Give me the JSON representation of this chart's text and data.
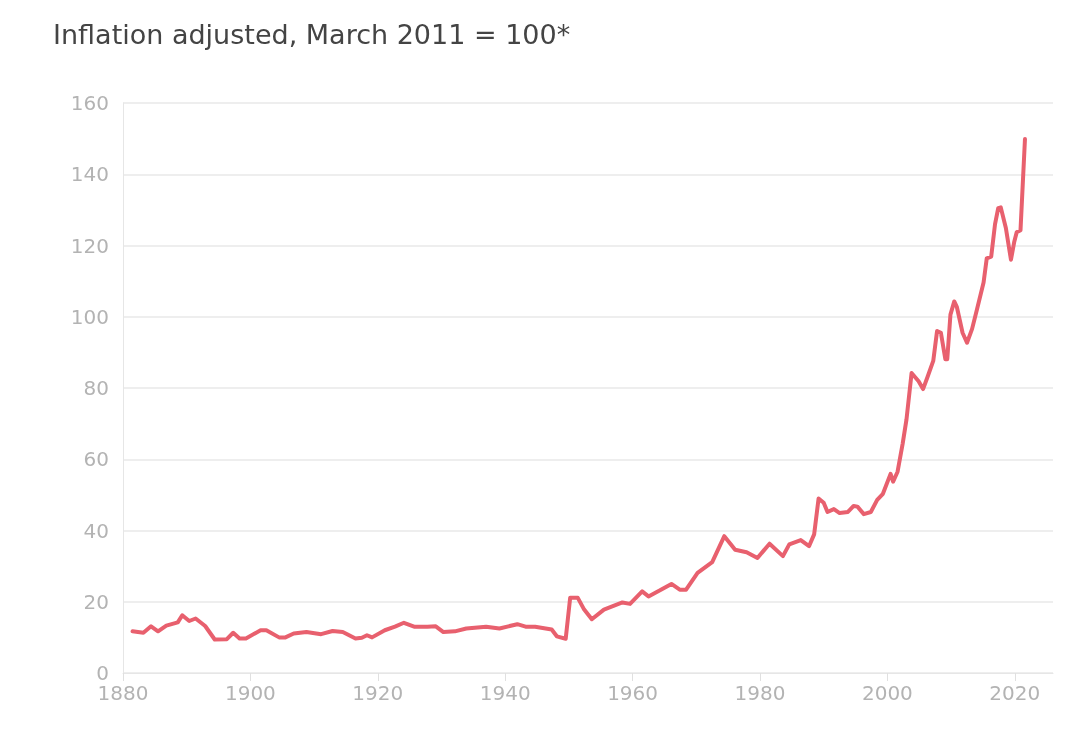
{
  "chart_data": {
    "type": "line",
    "title": "Inflation adjusted, March 2011 = 100*",
    "x": [
      1881.5,
      1883.2,
      1884.4,
      1885.5,
      1886.8,
      1888.6,
      1889.3,
      1890.4,
      1891.4,
      1892.9,
      1894.4,
      1896.3,
      1897.3,
      1898.3,
      1899.3,
      1901.6,
      1902.5,
      1904.5,
      1905.5,
      1906.8,
      1908.8,
      1911.1,
      1912.9,
      1914.5,
      1916.5,
      1917.5,
      1918.3,
      1919.1,
      1921.1,
      1922.7,
      1924.1,
      1925.7,
      1927.8,
      1929.1,
      1930.3,
      1932.1,
      1933.9,
      1937.0,
      1939.1,
      1941.9,
      1943.2,
      1944.7,
      1947.3,
      1948.1,
      1949.5,
      1950.2,
      1951.4,
      1952.4,
      1953.6,
      1955.5,
      1958.4,
      1959.6,
      1961.5,
      1962.5,
      1964.3,
      1966.1,
      1967.4,
      1968.4,
      1970.2,
      1972.5,
      1974.4,
      1976.1,
      1977.9,
      1979.6,
      1981.5,
      1983.6,
      1984.6,
      1986.4,
      1987.7,
      1988.5,
      1989.2,
      1990.0,
      1990.6,
      1991.6,
      1992.5,
      1993.8,
      1994.7,
      1995.3,
      1996.3,
      1997.4,
      1998.4,
      1999.3,
      2000.5,
      2000.9,
      2001.6,
      2002.4,
      2003.0,
      2003.8,
      2004.9,
      2005.6,
      2006.3,
      2007.2,
      2007.8,
      2008.4,
      2009.1,
      2009.4,
      2009.9,
      2010.5,
      2010.9,
      2011.8,
      2012.5,
      2013.3,
      2014.1,
      2015.1,
      2015.6,
      2016.3,
      2016.9,
      2017.4,
      2017.8,
      2018.6,
      2019.4,
      2019.9,
      2020.3,
      2020.9,
      2021.6
    ],
    "series": [
      {
        "color": "#e8606e",
        "values": [
          11.7,
          11.3,
          13.1,
          11.7,
          13.3,
          14.2,
          16.2,
          14.6,
          15.3,
          13.2,
          9.4,
          9.5,
          11.3,
          9.7,
          9.7,
          12.0,
          12.0,
          10.0,
          10.0,
          11.1,
          11.5,
          10.9,
          11.8,
          11.5,
          9.7,
          9.9,
          10.6,
          10.0,
          12.0,
          13.0,
          14.1,
          13.0,
          13.0,
          13.1,
          11.5,
          11.7,
          12.5,
          13.0,
          12.5,
          13.7,
          13.0,
          13.0,
          12.2,
          10.3,
          9.6,
          21.1,
          21.1,
          17.8,
          15.1,
          17.8,
          19.8,
          19.4,
          22.9,
          21.5,
          23.2,
          25.0,
          23.4,
          23.4,
          28.1,
          31.1,
          38.4,
          34.6,
          33.9,
          32.3,
          36.3,
          32.8,
          36.1,
          37.3,
          35.6,
          38.9,
          49.0,
          47.8,
          45.2,
          46.0,
          44.9,
          45.2,
          46.9,
          46.7,
          44.6,
          45.2,
          48.6,
          50.3,
          55.9,
          53.7,
          56.5,
          64.4,
          71.2,
          84.2,
          81.9,
          79.7,
          83.1,
          87.6,
          96.0,
          95.5,
          88.1,
          88.1,
          100.6,
          104.3,
          102.8,
          95.5,
          92.7,
          96.6,
          102.3,
          109.6,
          116.4,
          116.9,
          126.0,
          130.5,
          130.7,
          124.9,
          116.0,
          120.9,
          123.7,
          124.3,
          149.9
        ]
      }
    ],
    "xlim": [
      1880,
      2026
    ],
    "xticks": [
      1880,
      1900,
      1920,
      1940,
      1960,
      1980,
      2000,
      2020
    ],
    "ylim": [
      0,
      160
    ],
    "yticks": [
      0,
      20,
      40,
      60,
      80,
      100,
      120,
      140,
      160
    ],
    "grid": "y",
    "marker": "none",
    "line_style": "solid"
  }
}
